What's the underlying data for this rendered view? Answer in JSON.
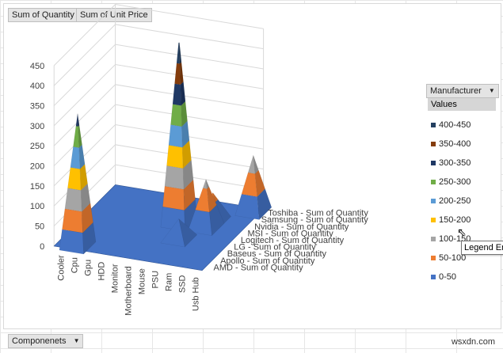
{
  "filters": {
    "sum_quantity_label": "Sum of Quantity",
    "sum_unit_price_label": "Sum of Unit Price"
  },
  "axis_field": {
    "label": "Componenets"
  },
  "legend_field": {
    "label": "Manufacturer"
  },
  "legend": {
    "title": "Values",
    "items": [
      {
        "label": "400-450",
        "color": "#243f60"
      },
      {
        "label": "350-400",
        "color": "#843c0c"
      },
      {
        "label": "300-350",
        "color": "#1f3864"
      },
      {
        "label": "250-300",
        "color": "#70ad47"
      },
      {
        "label": "200-250",
        "color": "#5b9bd5"
      },
      {
        "label": "150-200",
        "color": "#ffc000"
      },
      {
        "label": "100-150",
        "color": "#a5a5a5"
      },
      {
        "label": "50-100",
        "color": "#ed7d31"
      },
      {
        "label": "0-50",
        "color": "#4472c4"
      }
    ]
  },
  "tooltip": {
    "text": "Legend Entry"
  },
  "watermark": {
    "text": "wsxdn.com"
  },
  "chart_data": {
    "type": "3d-surface",
    "title": "",
    "zlabel": "Sum of Quantity",
    "zlim": [
      0,
      450
    ],
    "z_ticks": [
      "0",
      "50",
      "100",
      "150",
      "200",
      "250",
      "300",
      "350",
      "400",
      "450"
    ],
    "categories": [
      "Cooler",
      "Cpu",
      "Gpu",
      "HDD",
      "Monitor",
      "Motherboard",
      "Mouse",
      "PSU",
      "Ram",
      "SSD",
      "Usb Hub"
    ],
    "series": [
      {
        "name": "AMD - Sum of Quantity",
        "values": [
          0,
          330,
          0,
          0,
          0,
          0,
          0,
          0,
          0,
          0,
          0
        ]
      },
      {
        "name": "Apollo - Sum of Quantity",
        "values": [
          0,
          0,
          0,
          0,
          0,
          0,
          0,
          0,
          0,
          0,
          0
        ]
      },
      {
        "name": "Baseus - Sum of Quantity",
        "values": [
          0,
          0,
          0,
          0,
          0,
          0,
          0,
          0,
          0,
          0,
          0
        ]
      },
      {
        "name": "LG - Sum of Quantity",
        "values": [
          0,
          0,
          0,
          0,
          0,
          0,
          0,
          50,
          0,
          0,
          0
        ]
      },
      {
        "name": "Logitech - Sum of Quantity",
        "values": [
          0,
          0,
          0,
          0,
          0,
          0,
          0,
          0,
          0,
          0,
          0
        ]
      },
      {
        "name": "MSI - Sum of Quantity",
        "values": [
          0,
          0,
          0,
          0,
          0,
          0,
          460,
          0,
          120,
          0,
          0
        ]
      },
      {
        "name": "Nvidia - Sum of Quantity",
        "values": [
          0,
          0,
          0,
          0,
          0,
          0,
          0,
          0,
          70,
          0,
          0
        ]
      },
      {
        "name": "Samsung - Sum of Quantity",
        "values": [
          0,
          0,
          0,
          0,
          0,
          0,
          0,
          0,
          0,
          0,
          0
        ]
      },
      {
        "name": "Toshiba - Sum of Quantity",
        "values": [
          0,
          0,
          0,
          0,
          0,
          0,
          0,
          0,
          0,
          0,
          140
        ]
      }
    ]
  }
}
